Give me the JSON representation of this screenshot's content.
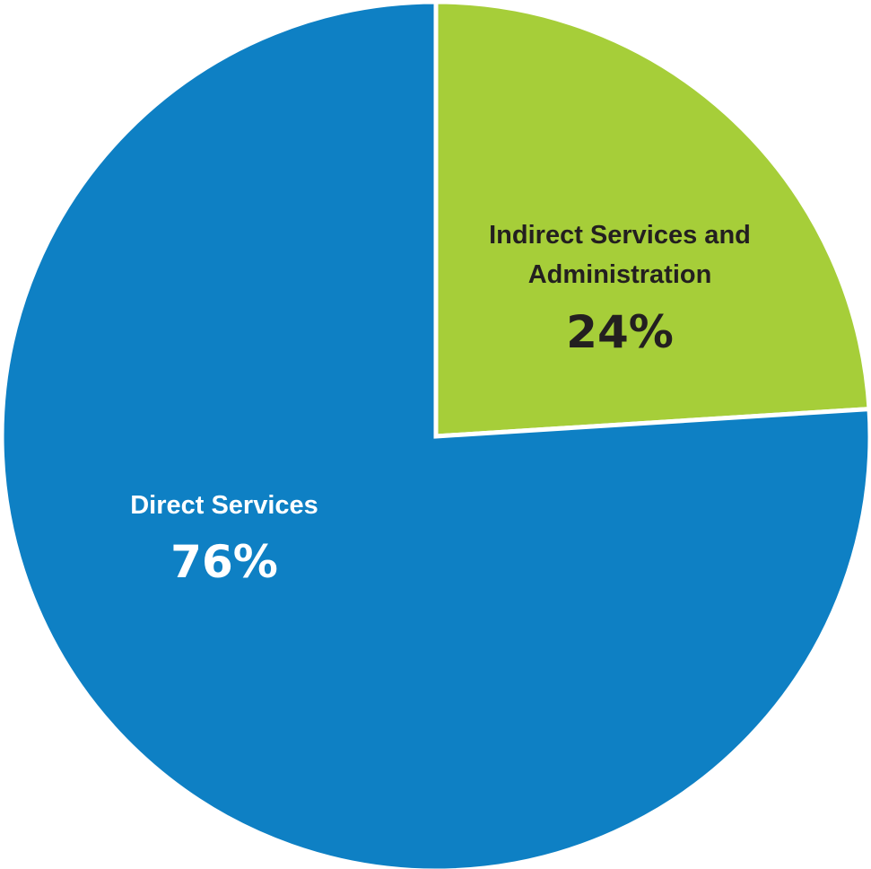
{
  "chart_data": {
    "type": "pie",
    "title": "",
    "slices": [
      {
        "label_lines": [
          "Indirect Services and",
          "Administration"
        ],
        "value": 24,
        "value_label": "24%",
        "color": "#a6ce39",
        "text_color": "#231f20"
      },
      {
        "label_lines": [
          "Direct Services"
        ],
        "value": 76,
        "value_label": "76%",
        "color": "#0e80c4",
        "text_color": "#ffffff"
      }
    ],
    "start_angle_deg": 0,
    "direction": "clockwise",
    "separator_color": "#ffffff"
  }
}
